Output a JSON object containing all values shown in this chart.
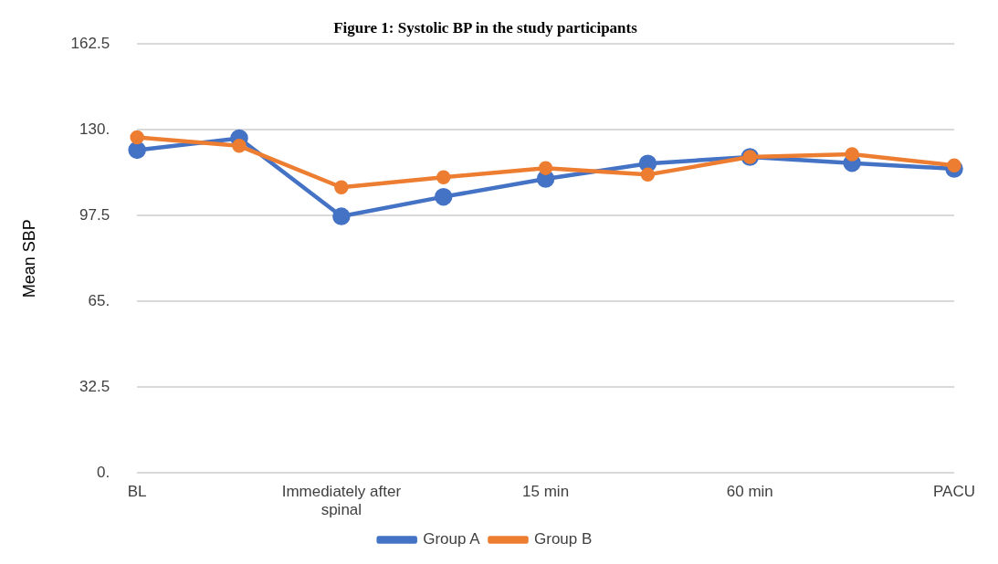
{
  "chart_data": {
    "type": "line",
    "title": "Figure 1: Systolic BP in the study participants",
    "ylabel": "Mean SBP",
    "categories": [
      "BL",
      null,
      "Immediately after spinal",
      null,
      "15 min",
      null,
      "60 min",
      null,
      "PACU"
    ],
    "series": [
      {
        "name": "Group A",
        "color": "#4472c4",
        "values": [
          122.3,
          126.8,
          97.2,
          104.6,
          111.4,
          117.2,
          119.7,
          117.4,
          115.2
        ]
      },
      {
        "name": "Group B",
        "color": "#ed7d31",
        "values": [
          127.1,
          123.9,
          108.2,
          112.0,
          115.5,
          113.0,
          119.7,
          120.7,
          116.5
        ]
      }
    ],
    "ylim": [
      0,
      162.5
    ],
    "yticks": [
      {
        "value": 0,
        "label": "0."
      },
      32.5,
      {
        "value": 65,
        "label": "65."
      },
      97.5,
      {
        "value": 130,
        "label": "130."
      },
      162.5
    ],
    "grid": "y",
    "legend": "bottom",
    "marker": "circle",
    "line_style": "solid"
  }
}
